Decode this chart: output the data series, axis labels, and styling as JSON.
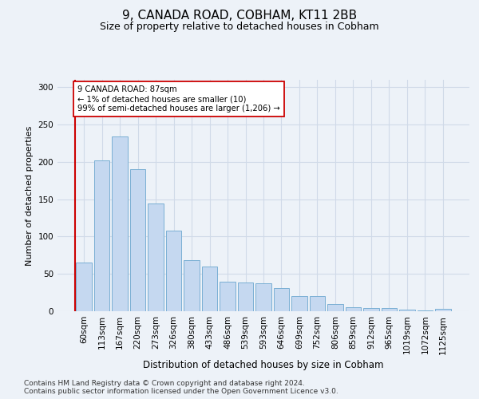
{
  "title": "9, CANADA ROAD, COBHAM, KT11 2BB",
  "subtitle": "Size of property relative to detached houses in Cobham",
  "xlabel": "Distribution of detached houses by size in Cobham",
  "ylabel": "Number of detached properties",
  "categories": [
    "60sqm",
    "113sqm",
    "167sqm",
    "220sqm",
    "273sqm",
    "326sqm",
    "380sqm",
    "433sqm",
    "486sqm",
    "539sqm",
    "593sqm",
    "646sqm",
    "699sqm",
    "752sqm",
    "806sqm",
    "859sqm",
    "912sqm",
    "965sqm",
    "1019sqm",
    "1072sqm",
    "1125sqm"
  ],
  "values": [
    65,
    202,
    234,
    190,
    144,
    108,
    68,
    60,
    40,
    38,
    37,
    31,
    20,
    20,
    10,
    5,
    4,
    4,
    2,
    1,
    3
  ],
  "bar_color": "#c5d8f0",
  "bar_edge_color": "#7aafd4",
  "vline_color": "#cc0000",
  "annotation_text": "9 CANADA ROAD: 87sqm\n← 1% of detached houses are smaller (10)\n99% of semi-detached houses are larger (1,206) →",
  "annotation_box_color": "#ffffff",
  "annotation_box_edge": "#cc0000",
  "grid_color": "#d0dae8",
  "bg_color": "#edf2f8",
  "plot_bg_color": "#edf2f8",
  "footer1": "Contains HM Land Registry data © Crown copyright and database right 2024.",
  "footer2": "Contains public sector information licensed under the Open Government Licence v3.0.",
  "ylim": [
    0,
    310
  ],
  "yticks": [
    0,
    50,
    100,
    150,
    200,
    250,
    300
  ]
}
